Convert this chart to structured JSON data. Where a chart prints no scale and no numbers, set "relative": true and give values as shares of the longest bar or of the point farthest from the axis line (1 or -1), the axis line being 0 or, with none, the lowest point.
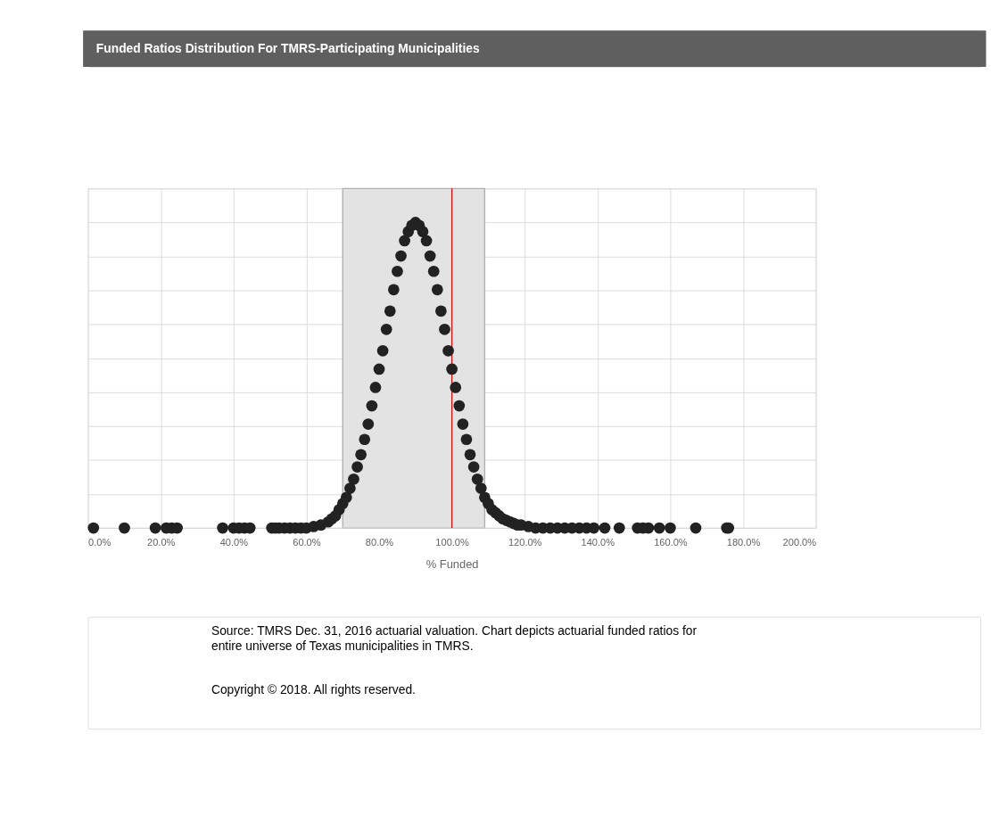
{
  "chart_data": {
    "type": "scatter",
    "title": "Funded Ratios Distribution  For TMRS-Participating Municipalities",
    "xlabel": "% Funded",
    "relative": true,
    "marker": "circle",
    "grid": true,
    "tick_labels": "x",
    "xlim": [
      0,
      200
    ],
    "xticks": [
      {
        "value": 0,
        "label": "0.0%"
      },
      {
        "value": 20,
        "label": "20.0%"
      },
      {
        "value": 40,
        "label": "40.0%"
      },
      {
        "value": 60,
        "label": "60.0%"
      },
      {
        "value": 80,
        "label": "80.0%"
      },
      {
        "value": 100,
        "label": "100.0%"
      },
      {
        "value": 120,
        "label": "120.0%"
      },
      {
        "value": 140,
        "label": "140.0%"
      },
      {
        "value": 160,
        "label": "160.0%"
      },
      {
        "value": 180,
        "label": "180.0%"
      },
      {
        "value": 200,
        "label": "200.0%"
      }
    ],
    "series": [
      {
        "color": "#222222",
        "x": [
          1.5,
          10,
          18.5,
          21.5,
          23,
          24.5,
          37,
          40,
          41.5,
          43,
          44.5,
          50.5,
          51.5,
          52.5,
          54,
          55.5,
          57,
          58.5,
          60,
          62,
          64,
          66,
          67,
          68,
          69,
          70,
          71,
          72,
          73,
          74,
          75,
          76,
          77,
          78,
          79,
          80,
          81,
          82,
          83,
          84,
          85,
          86,
          87,
          88,
          89,
          90,
          91,
          92,
          93,
          94,
          95,
          96,
          97,
          98,
          99,
          100,
          101,
          102,
          103,
          104,
          105,
          106,
          107,
          108,
          109,
          110,
          111,
          112,
          113,
          114,
          115,
          116,
          117,
          118,
          119,
          121,
          123,
          125,
          127,
          129,
          131,
          133,
          135,
          137,
          139,
          142,
          146,
          151,
          152.5,
          154,
          157,
          160,
          167,
          175.5,
          176
        ],
        "values": [
          0,
          0,
          0,
          0,
          0,
          0,
          0,
          0,
          0,
          0,
          0,
          0,
          0,
          0,
          0,
          0,
          0,
          0,
          0,
          0.005,
          0.01,
          0.02,
          0.03,
          0.04,
          0.06,
          0.08,
          0.1,
          0.13,
          0.16,
          0.2,
          0.24,
          0.29,
          0.34,
          0.4,
          0.46,
          0.52,
          0.58,
          0.65,
          0.71,
          0.78,
          0.84,
          0.89,
          0.94,
          0.97,
          0.99,
          1.0,
          0.99,
          0.97,
          0.94,
          0.89,
          0.84,
          0.78,
          0.71,
          0.65,
          0.58,
          0.52,
          0.46,
          0.4,
          0.34,
          0.29,
          0.24,
          0.2,
          0.16,
          0.13,
          0.1,
          0.08,
          0.06,
          0.05,
          0.04,
          0.03,
          0.025,
          0.02,
          0.015,
          0.01,
          0.01,
          0.005,
          0,
          0,
          0,
          0,
          0,
          0,
          0,
          0,
          0,
          0,
          0,
          0,
          0,
          0,
          0,
          0,
          0,
          0,
          0
        ]
      }
    ],
    "bands": [
      {
        "axis": "x",
        "from": 70,
        "to": 109,
        "color": "#e3e3e3"
      }
    ],
    "ref_lines": [
      {
        "axis": "x",
        "value": 100,
        "color": "#ff0000"
      }
    ],
    "annotations": [
      "Source: TMRS Dec. 31, 2016 actuarial valuation. Chart depicts actuarial funded  ratios for entire universe of Texas municipalities in TMRS.",
      "Copyright © 2018. All rights reserved."
    ]
  }
}
